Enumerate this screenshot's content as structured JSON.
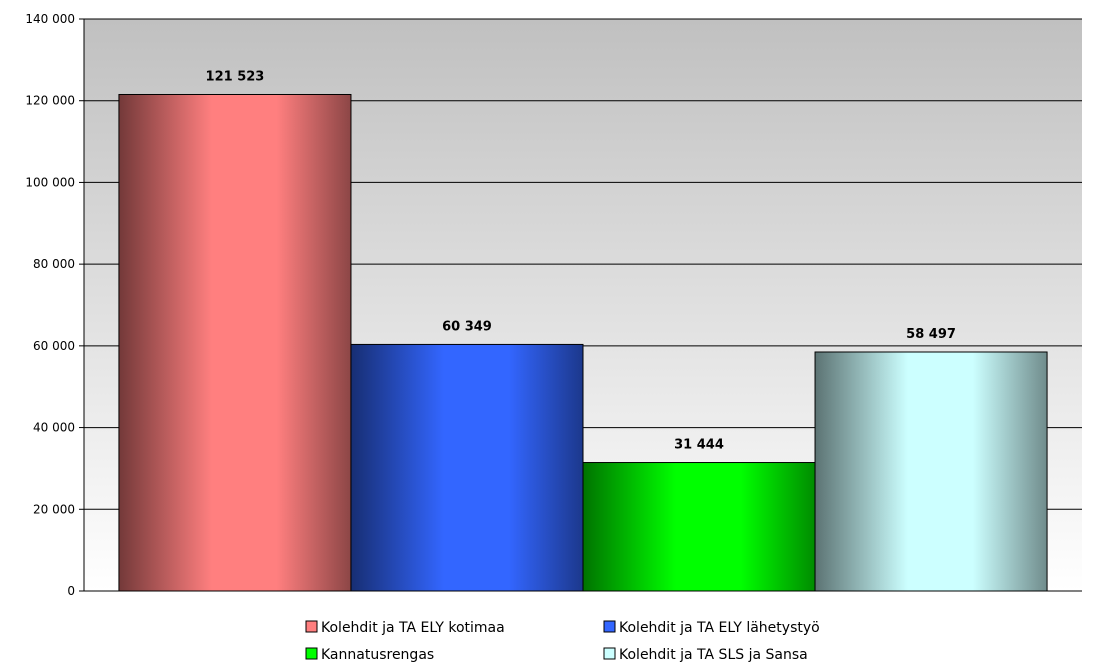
{
  "chart_data": {
    "type": "bar",
    "title": "",
    "xlabel": "",
    "ylabel": "",
    "ylim": [
      0,
      140000
    ],
    "yticks": [
      0,
      20000,
      40000,
      60000,
      80000,
      100000,
      120000,
      140000
    ],
    "ytick_labels": [
      "0",
      "20 000",
      "40 000",
      "60 000",
      "80 000",
      "100 000",
      "120 000",
      "140 000"
    ],
    "grid": true,
    "legend_position": "bottom",
    "series": [
      {
        "name": "Kolehdit ja TA ELY kotimaa",
        "value": 121523,
        "label": "121 523",
        "color": "#ff7f7f"
      },
      {
        "name": "Kolehdit ja TA ELY lähetystyö",
        "value": 60349,
        "label": "60 349",
        "color": "#3366ff"
      },
      {
        "name": "Kannatusrengas",
        "value": 31444,
        "label": "31 444",
        "color": "#00ff00"
      },
      {
        "name": "Kolehdit ja TA SLS ja Sansa",
        "value": 58497,
        "label": "58 497",
        "color": "#ccffff"
      }
    ]
  }
}
